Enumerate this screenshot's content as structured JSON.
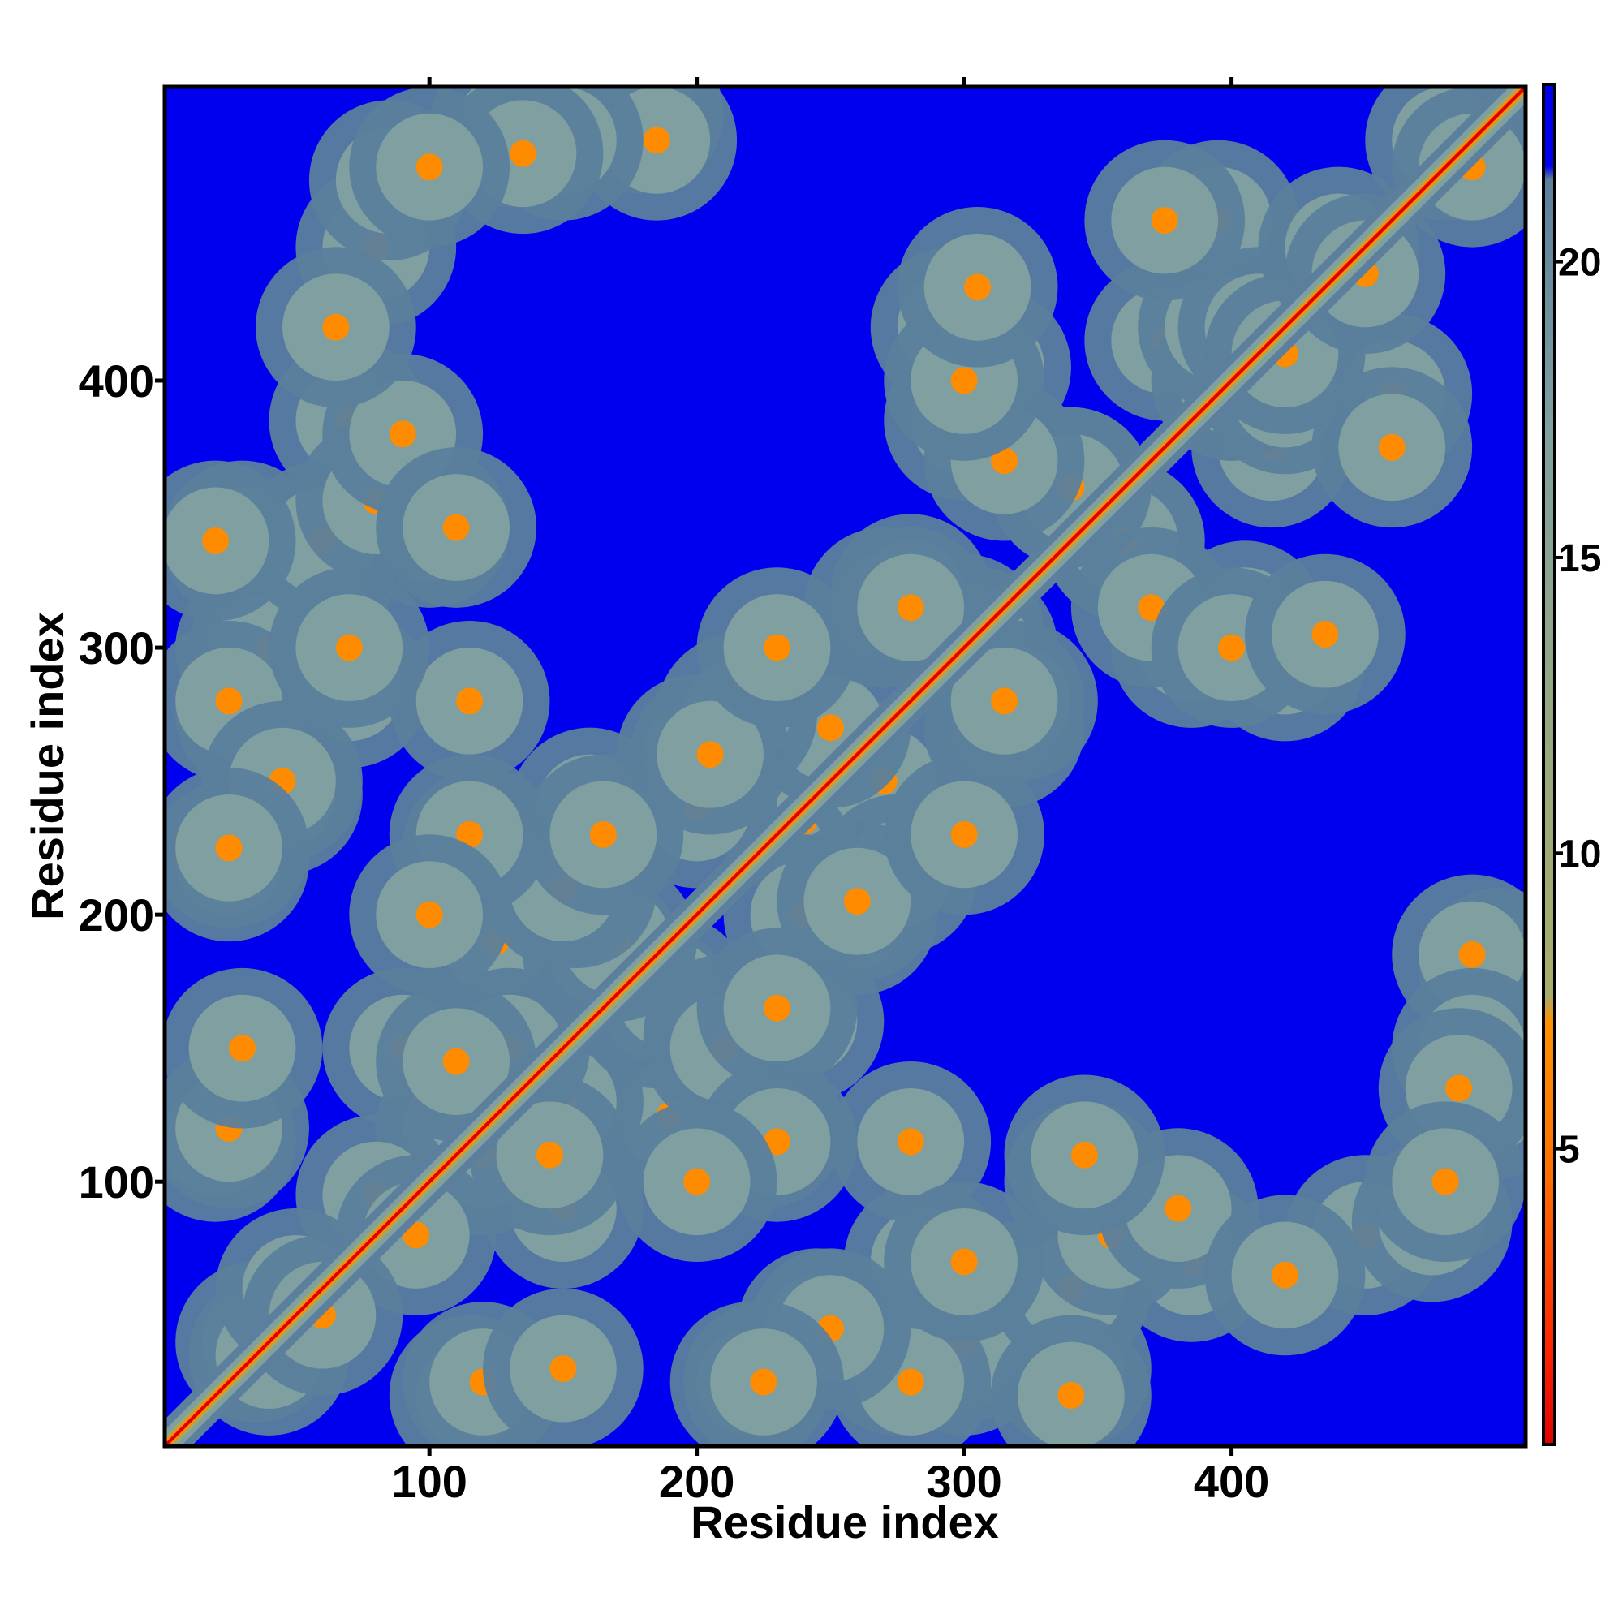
{
  "chart_data": {
    "type": "heatmap",
    "title": "",
    "xlabel": "Residue index",
    "ylabel": "Residue index",
    "xlim": [
      1,
      510
    ],
    "ylim": [
      1,
      510
    ],
    "x_ticks": [
      100,
      200,
      300,
      400
    ],
    "y_ticks": [
      100,
      200,
      300,
      400
    ],
    "x_tick_labels": [
      "100",
      "200",
      "300",
      "400"
    ],
    "y_tick_labels": [
      "100",
      "200",
      "300",
      "400"
    ],
    "colorbar": {
      "ticks": [
        5,
        10,
        15,
        20
      ],
      "tick_labels": [
        "5",
        "10",
        "15",
        "20"
      ],
      "range": [
        0,
        23
      ],
      "colors": [
        "#e00000",
        "#ff4000",
        "#ff8c00",
        "#9ea86a",
        "#7f9fa0",
        "#5b7f9c",
        "#0000ee"
      ]
    },
    "background_value": 23,
    "diagonal_value": 1,
    "contact_blobs": [
      {
        "x": 80,
        "y": 450,
        "v": 8
      },
      {
        "x": 180,
        "y": 500,
        "v": 9
      },
      {
        "x": 130,
        "y": 495,
        "v": 10
      },
      {
        "x": 100,
        "y": 345,
        "v": 9
      },
      {
        "x": 70,
        "y": 385,
        "v": 8
      },
      {
        "x": 35,
        "y": 275,
        "v": 8
      },
      {
        "x": 25,
        "y": 220,
        "v": 8
      },
      {
        "x": 55,
        "y": 325,
        "v": 8
      },
      {
        "x": 30,
        "y": 340,
        "v": 9
      },
      {
        "x": 35,
        "y": 300,
        "v": 8
      },
      {
        "x": 70,
        "y": 285,
        "v": 9
      },
      {
        "x": 45,
        "y": 245,
        "v": 9
      },
      {
        "x": 120,
        "y": 225,
        "v": 8
      },
      {
        "x": 115,
        "y": 280,
        "v": 9
      },
      {
        "x": 125,
        "y": 190,
        "v": 9
      },
      {
        "x": 130,
        "y": 150,
        "v": 8
      },
      {
        "x": 90,
        "y": 150,
        "v": 9
      },
      {
        "x": 150,
        "y": 130,
        "v": 8
      },
      {
        "x": 110,
        "y": 120,
        "v": 8
      },
      {
        "x": 145,
        "y": 110,
        "v": 8
      },
      {
        "x": 80,
        "y": 95,
        "v": 8
      },
      {
        "x": 20,
        "y": 115,
        "v": 9
      },
      {
        "x": 35,
        "y": 40,
        "v": 8
      },
      {
        "x": 50,
        "y": 60,
        "v": 8
      },
      {
        "x": 165,
        "y": 185,
        "v": 8
      },
      {
        "x": 190,
        "y": 170,
        "v": 8
      },
      {
        "x": 160,
        "y": 240,
        "v": 9
      },
      {
        "x": 155,
        "y": 210,
        "v": 8
      },
      {
        "x": 200,
        "y": 260,
        "v": 8
      },
      {
        "x": 235,
        "y": 240,
        "v": 8
      },
      {
        "x": 240,
        "y": 200,
        "v": 8
      },
      {
        "x": 210,
        "y": 150,
        "v": 9
      },
      {
        "x": 230,
        "y": 165,
        "v": 8
      },
      {
        "x": 230,
        "y": 115,
        "v": 8
      },
      {
        "x": 200,
        "y": 100,
        "v": 9
      },
      {
        "x": 270,
        "y": 250,
        "v": 8
      },
      {
        "x": 275,
        "y": 215,
        "v": 8
      },
      {
        "x": 260,
        "y": 205,
        "v": 9
      },
      {
        "x": 300,
        "y": 305,
        "v": 8
      },
      {
        "x": 270,
        "y": 315,
        "v": 8
      },
      {
        "x": 280,
        "y": 320,
        "v": 8
      },
      {
        "x": 315,
        "y": 280,
        "v": 8
      },
      {
        "x": 300,
        "y": 230,
        "v": 9
      },
      {
        "x": 310,
        "y": 405,
        "v": 8
      },
      {
        "x": 300,
        "y": 385,
        "v": 8
      },
      {
        "x": 340,
        "y": 360,
        "v": 8
      },
      {
        "x": 360,
        "y": 340,
        "v": 8
      },
      {
        "x": 370,
        "y": 315,
        "v": 9
      },
      {
        "x": 375,
        "y": 415,
        "v": 8
      },
      {
        "x": 395,
        "y": 460,
        "v": 8
      },
      {
        "x": 400,
        "y": 400,
        "v": 8
      },
      {
        "x": 420,
        "y": 395,
        "v": 8
      },
      {
        "x": 410,
        "y": 420,
        "v": 8
      },
      {
        "x": 460,
        "y": 375,
        "v": 8
      },
      {
        "x": 420,
        "y": 295,
        "v": 8
      },
      {
        "x": 400,
        "y": 300,
        "v": 9
      },
      {
        "x": 435,
        "y": 305,
        "v": 9
      },
      {
        "x": 440,
        "y": 450,
        "v": 8
      },
      {
        "x": 480,
        "y": 490,
        "v": 8
      },
      {
        "x": 490,
        "y": 185,
        "v": 9
      },
      {
        "x": 490,
        "y": 150,
        "v": 9
      },
      {
        "x": 485,
        "y": 135,
        "v": 9
      },
      {
        "x": 475,
        "y": 85,
        "v": 8
      },
      {
        "x": 480,
        "y": 100,
        "v": 9
      },
      {
        "x": 320,
        "y": 55,
        "v": 8
      },
      {
        "x": 300,
        "y": 40,
        "v": 9
      },
      {
        "x": 280,
        "y": 25,
        "v": 8
      },
      {
        "x": 340,
        "y": 60,
        "v": 8
      },
      {
        "x": 340,
        "y": 20,
        "v": 9
      },
      {
        "x": 355,
        "y": 80,
        "v": 9
      },
      {
        "x": 380,
        "y": 90,
        "v": 9
      },
      {
        "x": 420,
        "y": 65,
        "v": 9
      },
      {
        "x": 250,
        "y": 45,
        "v": 9
      },
      {
        "x": 225,
        "y": 25,
        "v": 8
      },
      {
        "x": 120,
        "y": 25,
        "v": 9
      },
      {
        "x": 150,
        "y": 30,
        "v": 9
      },
      {
        "x": 345,
        "y": 110,
        "v": 9
      },
      {
        "x": 300,
        "y": 70,
        "v": 8
      }
    ]
  }
}
